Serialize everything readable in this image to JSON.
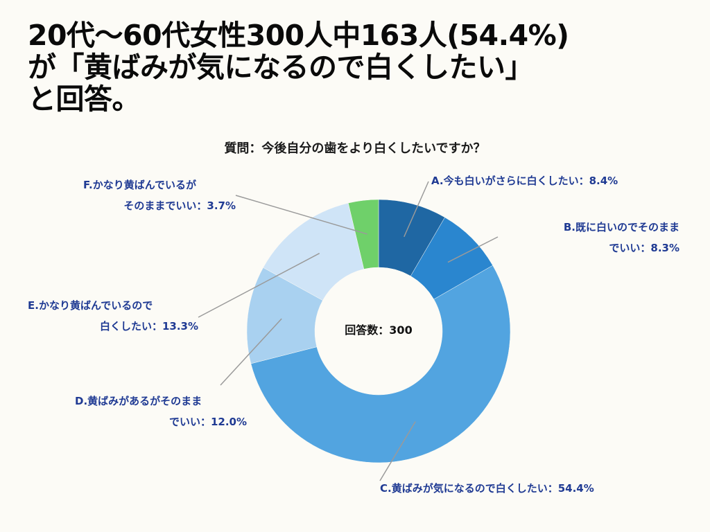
{
  "headline": {
    "line1": "20代〜60代女性300人中163人(54.4%)",
    "line2": "が「黄ばみが気になるので白くしたい」",
    "line3": "と回答。"
  },
  "question": "質問：今後自分の歯をより白くしたいですか？",
  "center_label": "回答数：300",
  "colors": {
    "label_text": "#1f3a93",
    "leader_line": "#9a9a9a",
    "background": "#fcfbf6"
  },
  "chart_data": {
    "type": "pie",
    "variant": "donut",
    "title": "質問：今後自分の歯をより白くしたいですか？",
    "total": 300,
    "unit": "%",
    "slices": [
      {
        "key": "A",
        "label_lines": [
          "A.今も白いがさらに白くしたい：8.4%"
        ],
        "value": 8.4,
        "color": "#1f67a3"
      },
      {
        "key": "B",
        "label_lines": [
          "B.既に白いのでそのまま",
          "でいい：8.3%"
        ],
        "value": 8.3,
        "color": "#2a86cf"
      },
      {
        "key": "C",
        "label_lines": [
          "C.黄ばみが気になるので白くしたい：54.4%"
        ],
        "value": 54.4,
        "color": "#52a4e0"
      },
      {
        "key": "D",
        "label_lines": [
          "D.黄ばみがあるがそのまま",
          "でいい：12.0%"
        ],
        "value": 12.0,
        "color": "#a9d1f0"
      },
      {
        "key": "E",
        "label_lines": [
          "E.かなり黄ばんでいるので",
          "白くしたい：13.3%"
        ],
        "value": 13.3,
        "color": "#cfe4f7"
      },
      {
        "key": "F",
        "label_lines": [
          "F.かなり黄ばんでいるが",
          "そのままでいい：3.7%"
        ],
        "value": 3.7,
        "color": "#6fd06a"
      }
    ]
  }
}
